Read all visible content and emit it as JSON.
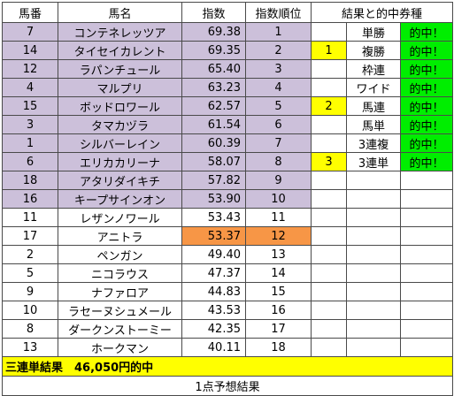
{
  "headers": [
    "馬番",
    "馬名",
    "指数",
    "指数順位",
    "結果と的中券種"
  ],
  "rows": [
    {
      "no": "7",
      "name": "コンテネレッツア",
      "score": "69.38",
      "rank": "1",
      "highlight": "lav",
      "mark": "",
      "ticket": "単勝",
      "hit": "的中！"
    },
    {
      "no": "14",
      "name": "タイセイカレント",
      "score": "69.35",
      "rank": "2",
      "highlight": "lav",
      "mark": "1",
      "ticket": "複勝",
      "hit": "的中！"
    },
    {
      "no": "12",
      "name": "ラパンチュール",
      "score": "65.40",
      "rank": "3",
      "highlight": "lav",
      "mark": "",
      "ticket": "枠連",
      "hit": "的中！"
    },
    {
      "no": "4",
      "name": "マルプリ",
      "score": "63.23",
      "rank": "4",
      "highlight": "lav",
      "mark": "",
      "ticket": "ワイド",
      "hit": "的中！"
    },
    {
      "no": "15",
      "name": "ボッドロワール",
      "score": "62.57",
      "rank": "5",
      "highlight": "lav",
      "mark": "2",
      "ticket": "馬連",
      "hit": "的中！"
    },
    {
      "no": "3",
      "name": "タマカヅラ",
      "score": "61.54",
      "rank": "6",
      "highlight": "lav",
      "mark": "",
      "ticket": "馬単",
      "hit": "的中！"
    },
    {
      "no": "1",
      "name": "シルバーレイン",
      "score": "60.39",
      "rank": "7",
      "highlight": "lav",
      "mark": "",
      "ticket": "3連複",
      "hit": "的中！"
    },
    {
      "no": "6",
      "name": "エリカカリーナ",
      "score": "58.07",
      "rank": "8",
      "highlight": "lav",
      "mark": "3",
      "ticket": "3連単",
      "hit": "的中！"
    },
    {
      "no": "18",
      "name": "アタリダイキチ",
      "score": "57.82",
      "rank": "9",
      "highlight": "lav",
      "mark": "",
      "ticket": "",
      "hit": ""
    },
    {
      "no": "16",
      "name": "キープサインオン",
      "score": "53.90",
      "rank": "10",
      "highlight": "lav",
      "mark": "",
      "ticket": "",
      "hit": ""
    },
    {
      "no": "11",
      "name": "レザンノワール",
      "score": "53.43",
      "rank": "11",
      "highlight": "",
      "mark": "",
      "ticket": "",
      "hit": ""
    },
    {
      "no": "17",
      "name": "アニトラ",
      "score": "53.37",
      "rank": "12",
      "highlight": "orange",
      "mark": "",
      "ticket": "",
      "hit": ""
    },
    {
      "no": "2",
      "name": "ペンガン",
      "score": "49.40",
      "rank": "13",
      "highlight": "",
      "mark": "",
      "ticket": "",
      "hit": ""
    },
    {
      "no": "5",
      "name": "ニコラウス",
      "score": "47.37",
      "rank": "14",
      "highlight": "",
      "mark": "",
      "ticket": "",
      "hit": ""
    },
    {
      "no": "9",
      "name": "ナファロア",
      "score": "44.83",
      "rank": "15",
      "highlight": "",
      "mark": "",
      "ticket": "",
      "hit": ""
    },
    {
      "no": "10",
      "name": "ラセーヌシュメール",
      "score": "43.53",
      "rank": "16",
      "highlight": "",
      "mark": "",
      "ticket": "",
      "hit": ""
    },
    {
      "no": "8",
      "name": "ダークンストーミー",
      "score": "42.35",
      "rank": "17",
      "highlight": "",
      "mark": "",
      "ticket": "",
      "hit": ""
    },
    {
      "no": "13",
      "name": "ホークマン",
      "score": "40.11",
      "rank": "18",
      "highlight": "",
      "mark": "",
      "ticket": "",
      "hit": ""
    }
  ],
  "summary": "三連単結果　46,050円的中",
  "footer": "1点予想結果",
  "colors": {
    "lavender": "#ccc0da",
    "orange": "#f79646",
    "yellow": "#ffff00",
    "green": "#00ee00"
  }
}
